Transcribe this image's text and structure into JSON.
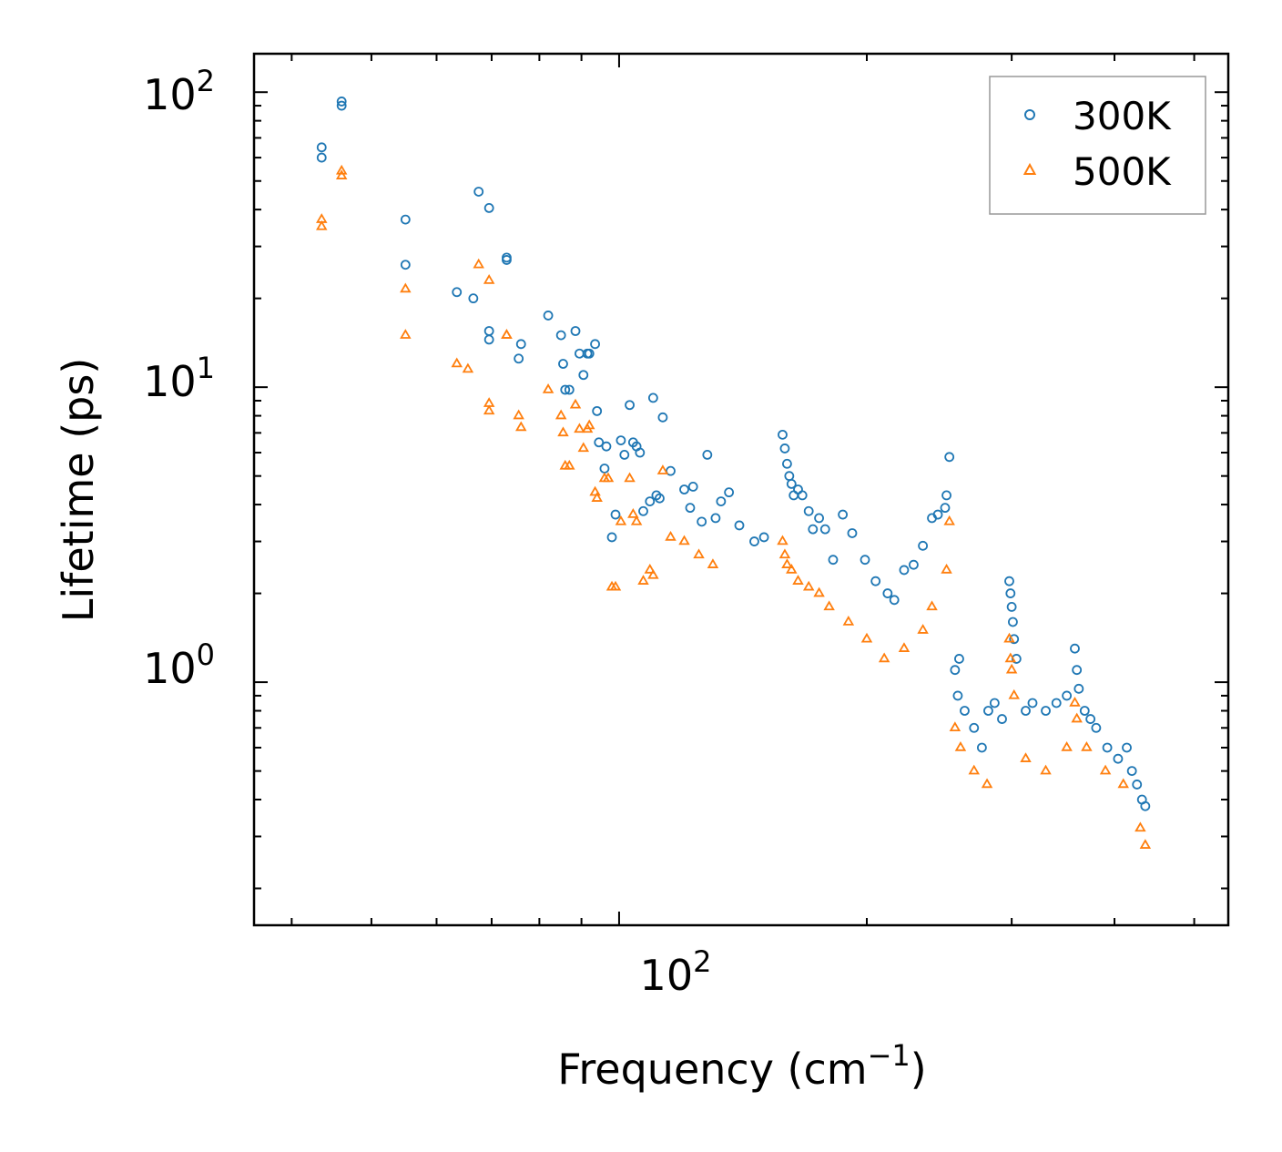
{
  "chart_data": {
    "type": "scatter",
    "x_scale": "log",
    "y_scale": "log",
    "xlabel": "Frequency (cm",
    "xlabel_superscript": "−1",
    "xlabel_suffix": ")",
    "ylabel": "Lifetime (ps)",
    "xlim": [
      36,
      550
    ],
    "ylim": [
      0.15,
      135
    ],
    "grid": false,
    "legend_position": "top-right",
    "x_ticks": [
      {
        "base": "10",
        "exp": "2",
        "value": 100
      }
    ],
    "y_ticks": [
      {
        "base": "10",
        "exp": "2",
        "value": 100
      },
      {
        "base": "10",
        "exp": "1",
        "value": 10
      },
      {
        "base": "10",
        "exp": "0",
        "value": 1
      }
    ],
    "series": [
      {
        "name": "300K",
        "marker": "circle",
        "color": "#1f77b4",
        "points": [
          [
            43.5,
            60
          ],
          [
            43.5,
            65
          ],
          [
            46,
            90
          ],
          [
            46,
            93
          ],
          [
            55,
            37
          ],
          [
            55,
            26
          ],
          [
            63.5,
            21
          ],
          [
            66.5,
            20
          ],
          [
            67.5,
            46
          ],
          [
            69.5,
            40.5
          ],
          [
            69.5,
            15.5
          ],
          [
            69.5,
            14.5
          ],
          [
            73,
            27
          ],
          [
            73,
            27.5
          ],
          [
            75.5,
            12.5
          ],
          [
            76,
            14
          ],
          [
            82,
            17.5
          ],
          [
            85,
            15
          ],
          [
            85.5,
            12
          ],
          [
            86,
            9.8
          ],
          [
            87,
            9.8
          ],
          [
            88.5,
            15.5
          ],
          [
            89.5,
            13
          ],
          [
            90.5,
            11
          ],
          [
            91.5,
            13
          ],
          [
            92,
            13
          ],
          [
            93.5,
            14
          ],
          [
            94,
            8.3
          ],
          [
            94.5,
            6.5
          ],
          [
            96,
            5.3
          ],
          [
            96.5,
            6.3
          ],
          [
            98,
            3.1
          ],
          [
            99,
            3.7
          ],
          [
            100.5,
            6.6
          ],
          [
            101.5,
            5.9
          ],
          [
            103,
            8.7
          ],
          [
            104,
            6.5
          ],
          [
            105,
            6.3
          ],
          [
            106,
            6.0
          ],
          [
            107,
            3.8
          ],
          [
            109,
            4.1
          ],
          [
            110,
            9.2
          ],
          [
            111,
            4.3
          ],
          [
            112,
            4.2
          ],
          [
            113,
            7.9
          ],
          [
            115.5,
            5.2
          ],
          [
            120,
            4.5
          ],
          [
            122,
            3.9
          ],
          [
            123,
            4.6
          ],
          [
            126,
            3.5
          ],
          [
            128,
            5.9
          ],
          [
            131,
            3.6
          ],
          [
            133,
            4.1
          ],
          [
            136,
            4.4
          ],
          [
            140,
            3.4
          ],
          [
            146,
            3.0
          ],
          [
            150,
            3.1
          ],
          [
            158,
            6.9
          ],
          [
            159,
            6.2
          ],
          [
            160,
            5.5
          ],
          [
            161,
            5.0
          ],
          [
            162,
            4.7
          ],
          [
            163,
            4.3
          ],
          [
            165,
            4.5
          ],
          [
            167,
            4.3
          ],
          [
            170,
            3.8
          ],
          [
            172,
            3.3
          ],
          [
            175,
            3.6
          ],
          [
            178,
            3.3
          ],
          [
            182,
            2.6
          ],
          [
            187,
            3.7
          ],
          [
            192,
            3.2
          ],
          [
            199,
            2.6
          ],
          [
            205,
            2.2
          ],
          [
            212,
            2.0
          ],
          [
            216,
            1.9
          ],
          [
            222,
            2.4
          ],
          [
            228,
            2.5
          ],
          [
            234,
            2.9
          ],
          [
            240,
            3.6
          ],
          [
            244,
            3.7
          ],
          [
            249,
            3.9
          ],
          [
            250,
            4.3
          ],
          [
            252,
            5.8
          ],
          [
            256,
            1.1
          ],
          [
            259,
            1.2
          ],
          [
            258,
            0.9
          ],
          [
            263,
            0.8
          ],
          [
            270,
            0.7
          ],
          [
            276,
            0.6
          ],
          [
            281,
            0.8
          ],
          [
            286,
            0.85
          ],
          [
            292,
            0.75
          ],
          [
            298,
            2.2
          ],
          [
            299,
            2.0
          ],
          [
            300,
            1.8
          ],
          [
            301,
            1.6
          ],
          [
            302,
            1.4
          ],
          [
            304,
            1.2
          ],
          [
            312,
            0.8
          ],
          [
            318,
            0.85
          ],
          [
            330,
            0.8
          ],
          [
            340,
            0.85
          ],
          [
            350,
            0.9
          ],
          [
            358,
            1.3
          ],
          [
            360,
            1.1
          ],
          [
            362,
            0.95
          ],
          [
            368,
            0.8
          ],
          [
            374,
            0.75
          ],
          [
            380,
            0.7
          ],
          [
            392,
            0.6
          ],
          [
            404,
            0.55
          ],
          [
            414,
            0.6
          ],
          [
            420,
            0.5
          ],
          [
            426,
            0.45
          ],
          [
            432,
            0.4
          ],
          [
            436,
            0.38
          ]
        ]
      },
      {
        "name": "500K",
        "marker": "triangle",
        "color": "#ff7f0e",
        "points": [
          [
            43.5,
            35
          ],
          [
            43.5,
            37
          ],
          [
            46,
            52
          ],
          [
            46,
            54
          ],
          [
            55,
            15
          ],
          [
            55,
            21.5
          ],
          [
            63.5,
            12
          ],
          [
            65.5,
            11.5
          ],
          [
            67.5,
            26
          ],
          [
            69.5,
            23
          ],
          [
            69.5,
            8.3
          ],
          [
            69.5,
            8.8
          ],
          [
            73,
            15
          ],
          [
            73,
            15
          ],
          [
            75.5,
            8
          ],
          [
            76,
            7.3
          ],
          [
            82,
            9.8
          ],
          [
            85,
            8
          ],
          [
            85.5,
            7
          ],
          [
            86,
            5.4
          ],
          [
            87,
            5.4
          ],
          [
            88.5,
            8.7
          ],
          [
            89.5,
            7.2
          ],
          [
            90.5,
            6.2
          ],
          [
            91.5,
            7.2
          ],
          [
            92,
            7.4
          ],
          [
            93.5,
            4.4
          ],
          [
            94,
            4.2
          ],
          [
            96,
            4.9
          ],
          [
            97,
            4.9
          ],
          [
            98,
            2.1
          ],
          [
            99,
            2.1
          ],
          [
            100.5,
            3.5
          ],
          [
            103,
            4.9
          ],
          [
            104,
            3.7
          ],
          [
            105,
            3.5
          ],
          [
            107,
            2.2
          ],
          [
            109,
            2.4
          ],
          [
            110,
            2.3
          ],
          [
            113,
            5.2
          ],
          [
            115.5,
            3.1
          ],
          [
            120,
            3.0
          ],
          [
            125,
            2.7
          ],
          [
            130,
            2.5
          ],
          [
            158,
            3.0
          ],
          [
            159,
            2.7
          ],
          [
            160,
            2.5
          ],
          [
            162,
            2.4
          ],
          [
            165,
            2.2
          ],
          [
            170,
            2.1
          ],
          [
            175,
            2.0
          ],
          [
            180,
            1.8
          ],
          [
            190,
            1.6
          ],
          [
            200,
            1.4
          ],
          [
            210,
            1.2
          ],
          [
            222,
            1.3
          ],
          [
            234,
            1.5
          ],
          [
            240,
            1.8
          ],
          [
            250,
            2.4
          ],
          [
            252,
            3.5
          ],
          [
            256,
            0.7
          ],
          [
            260,
            0.6
          ],
          [
            270,
            0.5
          ],
          [
            280,
            0.45
          ],
          [
            298,
            1.4
          ],
          [
            299,
            1.2
          ],
          [
            300,
            1.1
          ],
          [
            302,
            0.9
          ],
          [
            312,
            0.55
          ],
          [
            330,
            0.5
          ],
          [
            350,
            0.6
          ],
          [
            358,
            0.85
          ],
          [
            360,
            0.75
          ],
          [
            370,
            0.6
          ],
          [
            390,
            0.5
          ],
          [
            410,
            0.45
          ],
          [
            430,
            0.32
          ],
          [
            436,
            0.28
          ]
        ]
      }
    ]
  }
}
